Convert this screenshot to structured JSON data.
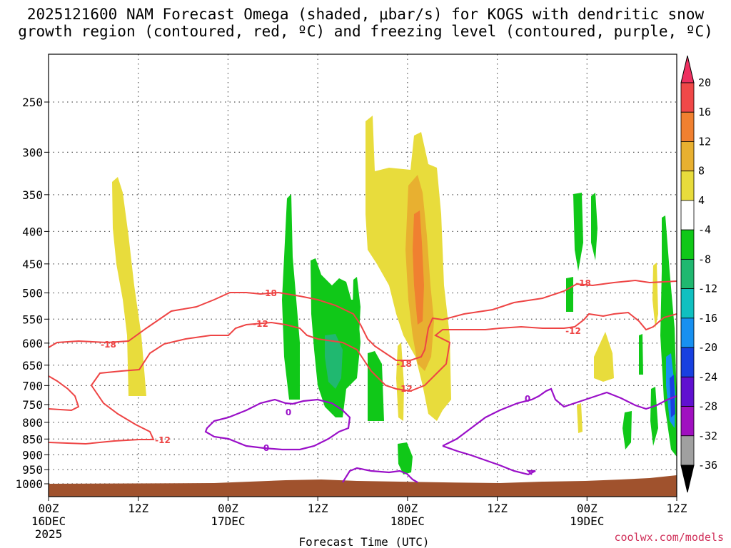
{
  "chart_data": {
    "type": "heatmap",
    "title_line1": "2025121600 NAM Forecast Omega (shaded, μbar/s) for KOGS with dendritic snow",
    "title_line2": "growth region (contoured, red, ºC) and freezing level (contoured, purple, ºC)",
    "xlabel": "Forecast Time (UTC)",
    "x_ticks": [
      {
        "label": "00Z",
        "sub": "16DEC",
        "sub2": "2025",
        "hour": 0
      },
      {
        "label": "12Z",
        "sub": "",
        "sub2": "",
        "hour": 12
      },
      {
        "label": "00Z",
        "sub": "17DEC",
        "sub2": "",
        "hour": 24
      },
      {
        "label": "12Z",
        "sub": "",
        "sub2": "",
        "hour": 36
      },
      {
        "label": "00Z",
        "sub": "18DEC",
        "sub2": "",
        "hour": 48
      },
      {
        "label": "12Z",
        "sub": "",
        "sub2": "",
        "hour": 60
      },
      {
        "label": "00Z",
        "sub": "19DEC",
        "sub2": "",
        "hour": 72
      },
      {
        "label": "12Z",
        "sub": "",
        "sub2": "",
        "hour": 84
      }
    ],
    "x_range_hours": [
      0,
      84
    ],
    "y_ticks": [
      "250",
      "300",
      "350",
      "400",
      "450",
      "500",
      "550",
      "600",
      "650",
      "700",
      "750",
      "800",
      "850",
      "900",
      "950",
      "1000"
    ],
    "y_levels": [
      250,
      300,
      350,
      400,
      450,
      500,
      550,
      600,
      650,
      700,
      750,
      800,
      850,
      900,
      950,
      1000
    ],
    "colorbar": {
      "labels": [
        "20",
        "16",
        "12",
        "8",
        "4",
        "-4",
        "-8",
        "-12",
        "-16",
        "-20",
        "-24",
        "-28",
        "-32",
        "-36"
      ],
      "colors": [
        "#ee3060",
        "#f04848",
        "#f08030",
        "#e8b030",
        "#e8dc3c",
        "#ffffff",
        "#10c818",
        "#20b870",
        "#10c0c0",
        "#1890f0",
        "#1840e0",
        "#6010d0",
        "#a010c0",
        "#a0a0a0",
        "#000000"
      ]
    },
    "contour_labels": {
      "dgz_top": "-18",
      "dgz_bottom": "-12",
      "freezing": "0"
    },
    "colors": {
      "dgz": "#ee4444",
      "freezing": "#9a10c8",
      "ground": "#a0522d"
    }
  },
  "credit": "coolwx.com/models"
}
